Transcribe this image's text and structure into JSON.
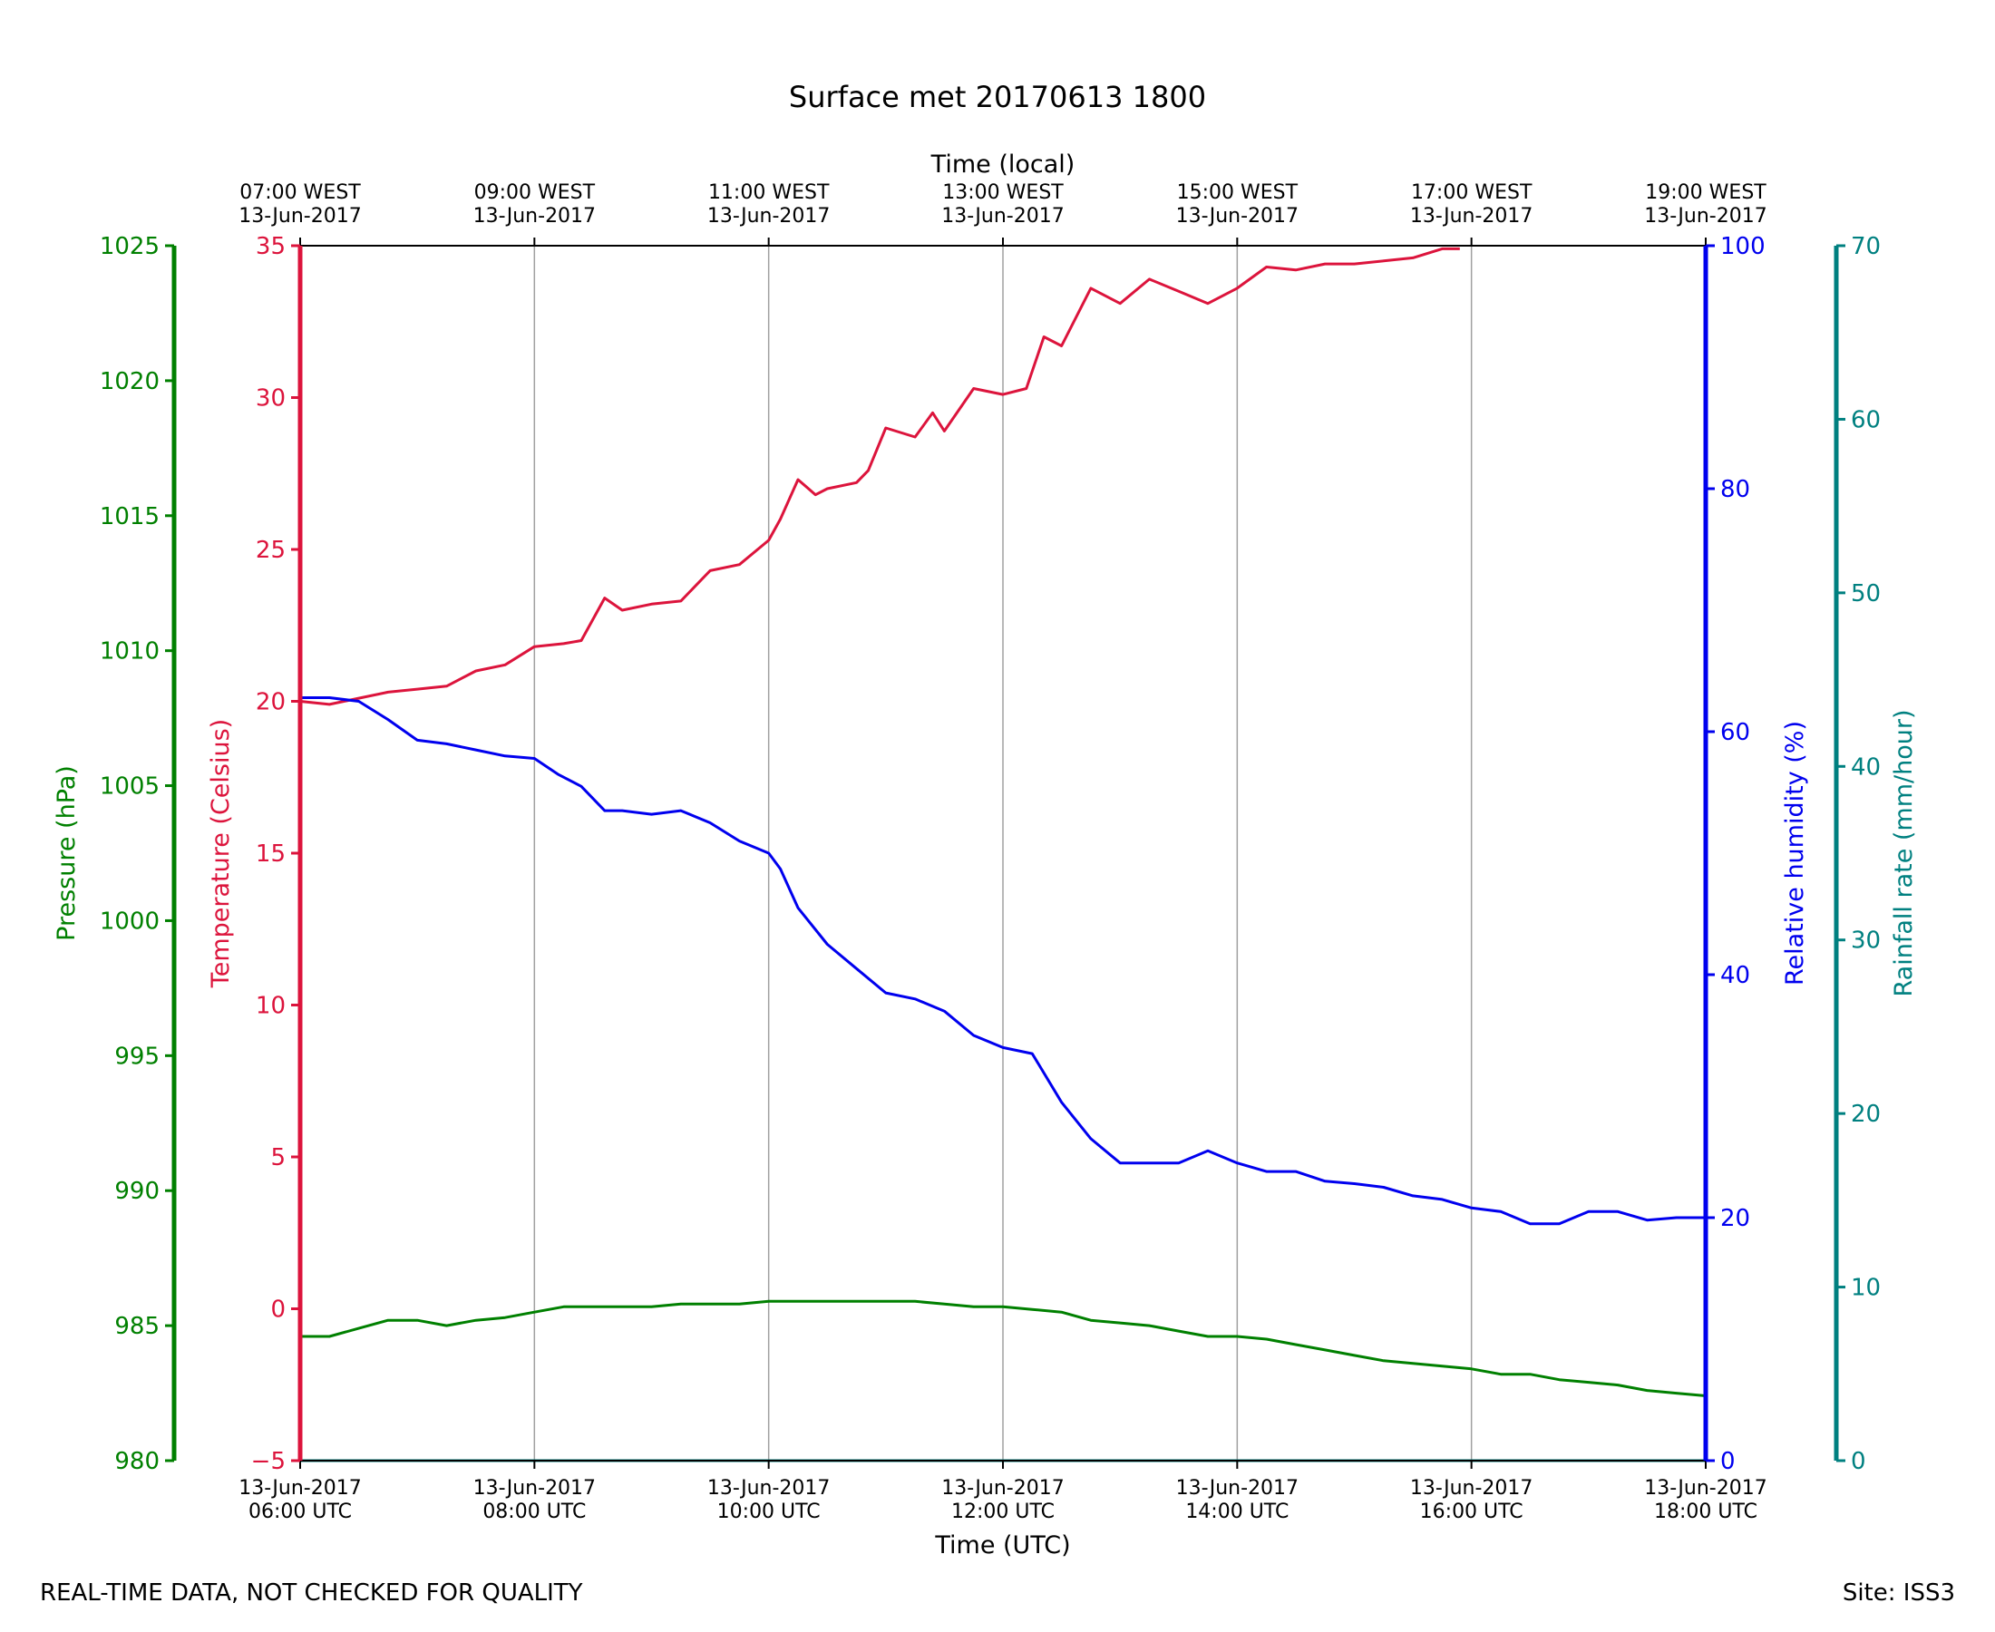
{
  "title": "Surface met 20170613 1800",
  "footer": {
    "quality_note": "REAL-TIME DATA, NOT CHECKED FOR QUALITY",
    "site": "Site: ISS3"
  },
  "colors": {
    "temperature": "#dc143c",
    "humidity": "#0000ee",
    "pressure": "#008000",
    "rainfall": "#008080",
    "grid": "#a0a0a0"
  },
  "chart_data": {
    "type": "line",
    "x_axis_bottom": {
      "label": "Time (UTC)",
      "range": [
        6,
        18
      ],
      "ticks": [
        {
          "x": 6,
          "line1": "13-Jun-2017",
          "line2": "06:00 UTC"
        },
        {
          "x": 8,
          "line1": "13-Jun-2017",
          "line2": "08:00 UTC"
        },
        {
          "x": 10,
          "line1": "13-Jun-2017",
          "line2": "10:00 UTC"
        },
        {
          "x": 12,
          "line1": "13-Jun-2017",
          "line2": "12:00 UTC"
        },
        {
          "x": 14,
          "line1": "13-Jun-2017",
          "line2": "14:00 UTC"
        },
        {
          "x": 16,
          "line1": "13-Jun-2017",
          "line2": "16:00 UTC"
        },
        {
          "x": 18,
          "line1": "13-Jun-2017",
          "line2": "18:00 UTC"
        }
      ]
    },
    "x_axis_top": {
      "label": "Time (local)",
      "ticks": [
        {
          "x": 6,
          "line1": "07:00 WEST",
          "line2": "13-Jun-2017"
        },
        {
          "x": 8,
          "line1": "09:00 WEST",
          "line2": "13-Jun-2017"
        },
        {
          "x": 10,
          "line1": "11:00 WEST",
          "line2": "13-Jun-2017"
        },
        {
          "x": 12,
          "line1": "13:00 WEST",
          "line2": "13-Jun-2017"
        },
        {
          "x": 14,
          "line1": "15:00 WEST",
          "line2": "13-Jun-2017"
        },
        {
          "x": 16,
          "line1": "17:00 WEST",
          "line2": "13-Jun-2017"
        },
        {
          "x": 18,
          "line1": "19:00 WEST",
          "line2": "13-Jun-2017"
        }
      ]
    },
    "grid_x": true,
    "axes": {
      "pressure": {
        "label": "Pressure (hPa)",
        "range": [
          980,
          1025
        ],
        "ticks": [
          980,
          985,
          990,
          995,
          1000,
          1005,
          1010,
          1015,
          1020,
          1025
        ]
      },
      "temperature": {
        "label": "Temperature (Celsius)",
        "range": [
          -5,
          35
        ],
        "ticks": [
          -5,
          0,
          5,
          10,
          15,
          20,
          25,
          30,
          35
        ]
      },
      "humidity": {
        "label": "Relative humidity (%)",
        "range": [
          0,
          100
        ],
        "ticks": [
          0,
          20,
          40,
          60,
          80,
          100
        ]
      },
      "rainfall": {
        "label": "Rainfall rate (mm/hour)",
        "range": [
          0,
          70
        ],
        "ticks": [
          0,
          10,
          20,
          30,
          40,
          50,
          60,
          70
        ]
      }
    },
    "series": [
      {
        "axis": "temperature",
        "x": [
          6.0,
          6.25,
          6.5,
          6.75,
          7.0,
          7.25,
          7.5,
          7.75,
          8.0,
          8.25,
          8.4,
          8.6,
          8.75,
          9.0,
          9.25,
          9.5,
          9.75,
          10.0,
          10.1,
          10.25,
          10.4,
          10.5,
          10.75,
          10.85,
          11.0,
          11.25,
          11.4,
          11.5,
          11.75,
          12.0,
          12.2,
          12.35,
          12.5,
          12.75,
          13.0,
          13.25,
          13.5,
          13.75,
          14.0,
          14.25,
          14.5,
          14.75,
          15.0,
          15.25,
          15.5,
          15.75,
          15.9
        ],
        "values": [
          20.0,
          19.9,
          20.1,
          20.3,
          20.4,
          20.5,
          21.0,
          21.2,
          21.8,
          21.9,
          22.0,
          23.4,
          23.0,
          23.2,
          23.3,
          24.3,
          24.5,
          25.3,
          26.0,
          27.3,
          26.8,
          27.0,
          27.2,
          27.6,
          29.0,
          28.7,
          29.5,
          28.9,
          30.3,
          30.1,
          30.3,
          32.0,
          31.7,
          33.6,
          33.1,
          33.9,
          33.5,
          33.1,
          33.6,
          34.3,
          34.2,
          34.4,
          34.4,
          34.5,
          34.6,
          34.9,
          34.9
        ]
      },
      {
        "axis": "humidity",
        "x": [
          6.0,
          6.25,
          6.5,
          6.75,
          7.0,
          7.25,
          7.5,
          7.75,
          8.0,
          8.2,
          8.4,
          8.6,
          8.75,
          9.0,
          9.25,
          9.5,
          9.75,
          10.0,
          10.1,
          10.25,
          10.5,
          10.75,
          11.0,
          11.25,
          11.5,
          11.75,
          12.0,
          12.25,
          12.5,
          12.75,
          13.0,
          13.25,
          13.5,
          13.75,
          14.0,
          14.25,
          14.5,
          14.75,
          15.0,
          15.25,
          15.5,
          15.75,
          16.0,
          16.25,
          16.5,
          16.75,
          17.0,
          17.25,
          17.5,
          17.75,
          18.0
        ],
        "values": [
          62.8,
          62.8,
          62.5,
          61.0,
          59.3,
          59.0,
          58.5,
          58.0,
          57.8,
          56.5,
          55.5,
          53.5,
          53.5,
          53.2,
          53.5,
          52.5,
          51.0,
          50.0,
          48.7,
          45.5,
          42.5,
          40.5,
          38.5,
          38.0,
          37.0,
          35.0,
          34.0,
          33.5,
          29.5,
          26.5,
          24.5,
          24.5,
          24.5,
          25.5,
          24.5,
          23.8,
          23.8,
          23.0,
          22.8,
          22.5,
          21.8,
          21.5,
          20.8,
          20.5,
          19.5,
          19.5,
          20.5,
          20.5,
          19.8,
          20.0,
          20.0
        ]
      },
      {
        "axis": "pressure",
        "x": [
          6.0,
          6.25,
          6.5,
          6.75,
          7.0,
          7.25,
          7.5,
          7.75,
          8.0,
          8.25,
          8.5,
          8.75,
          9.0,
          9.25,
          9.5,
          9.75,
          10.0,
          10.25,
          10.5,
          10.75,
          11.0,
          11.25,
          11.5,
          11.75,
          12.0,
          12.25,
          12.5,
          12.75,
          13.0,
          13.25,
          13.5,
          13.75,
          14.0,
          14.25,
          14.5,
          14.75,
          15.0,
          15.25,
          15.5,
          15.75,
          16.0,
          16.25,
          16.5,
          16.75,
          17.0,
          17.25,
          17.5,
          17.75,
          18.0
        ],
        "values": [
          984.6,
          984.6,
          984.9,
          985.2,
          985.2,
          985.0,
          985.2,
          985.3,
          985.5,
          985.7,
          985.7,
          985.7,
          985.7,
          985.8,
          985.8,
          985.8,
          985.9,
          985.9,
          985.9,
          985.9,
          985.9,
          985.9,
          985.8,
          985.7,
          985.7,
          985.6,
          985.5,
          985.2,
          985.1,
          985.0,
          984.8,
          984.6,
          984.6,
          984.5,
          984.3,
          984.1,
          983.9,
          983.7,
          983.6,
          983.5,
          983.4,
          983.2,
          983.2,
          983.0,
          982.9,
          982.8,
          982.6,
          982.5,
          982.4
        ]
      },
      {
        "axis": "rainfall",
        "x": [
          6,
          18
        ],
        "values": [
          0,
          0
        ]
      }
    ]
  }
}
